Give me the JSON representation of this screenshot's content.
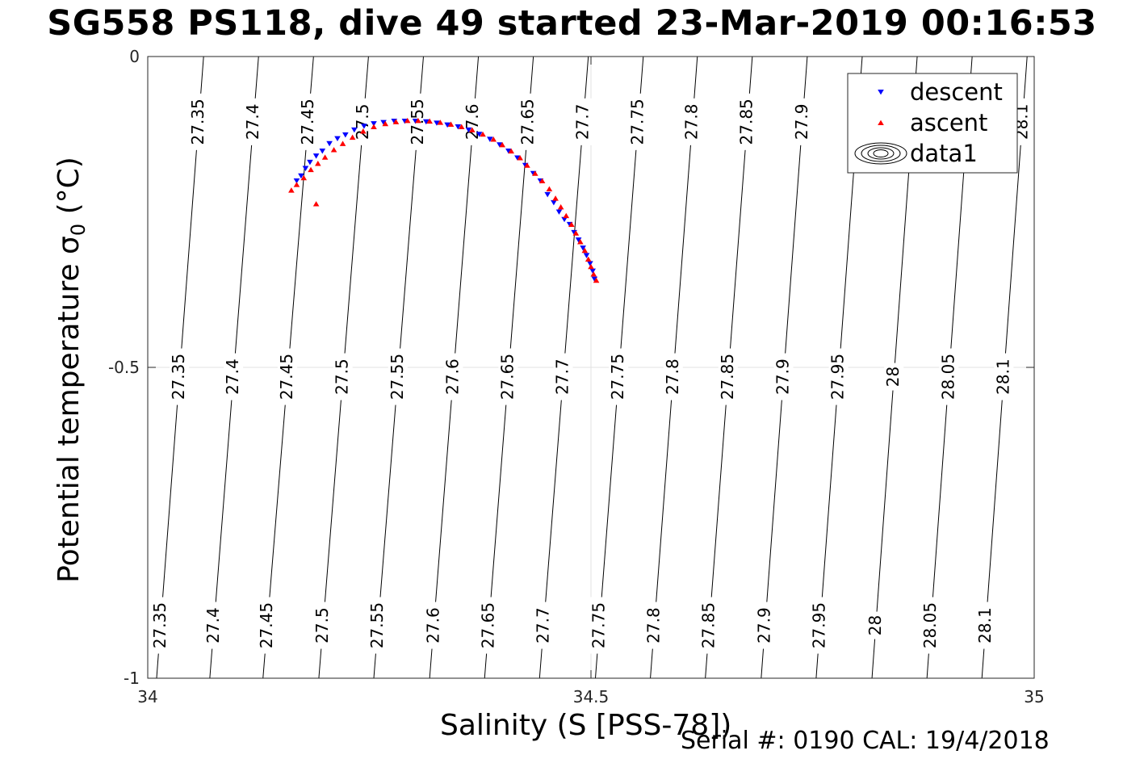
{
  "chart_data": {
    "type": "scatter",
    "title": "SG558 PS118, dive 49 started 23-Mar-2019 00:16:53",
    "xlabel": "Salinity (S [PSS-78])",
    "ylabel_text": "Potential temperature ",
    "ylabel_sigma": "σ",
    "ylabel_sub": "0",
    "ylabel_unit": " (°C)",
    "footer": "Serial #: 0190  CAL: 19/4/2018",
    "xlim": [
      34,
      35
    ],
    "ylim": [
      -1,
      0
    ],
    "x_ticks": [
      34,
      34.5,
      35
    ],
    "x_tick_labels": [
      "34",
      "34.5",
      "35"
    ],
    "y_ticks": [
      0,
      -0.5,
      -1
    ],
    "y_tick_labels": [
      "0",
      "-0.5",
      "-1"
    ],
    "grid": true,
    "legend_position": "top-right",
    "legend": [
      {
        "name": "descent",
        "marker": "triangle-down",
        "color": "#0000ff"
      },
      {
        "name": "ascent",
        "marker": "triangle-up",
        "color": "#ff0000"
      },
      {
        "name": "data1",
        "marker": "contour",
        "color": "#000000"
      }
    ],
    "contours": {
      "levels": [
        "27.35",
        "27.4",
        "27.45",
        "27.5",
        "27.55",
        "27.6",
        "27.65",
        "27.7",
        "27.75",
        "27.8",
        "27.85",
        "27.9",
        "27.95",
        "28",
        "28.05",
        "28.1"
      ],
      "s_at_bottom": [
        34.01,
        34.07,
        34.13,
        34.193,
        34.255,
        34.318,
        34.38,
        34.442,
        34.505,
        34.567,
        34.629,
        34.692,
        34.754,
        34.817,
        34.879,
        34.941
      ],
      "s_at_top": [
        34.063,
        34.125,
        34.187,
        34.249,
        34.311,
        34.373,
        34.435,
        34.497,
        34.559,
        34.62,
        34.682,
        34.744,
        34.806,
        34.868,
        34.93,
        34.992
      ],
      "label_rows": [
        {
          "y": -0.105,
          "levels": [
            "27.35",
            "27.4",
            "27.45",
            "27.5",
            "27.55",
            "27.6",
            "27.65",
            "27.7",
            "27.75",
            "27.8",
            "27.85",
            "27.9",
            "28.1"
          ]
        },
        {
          "y": -0.515,
          "levels": [
            "27.35",
            "27.4",
            "27.45",
            "27.5",
            "27.55",
            "27.6",
            "27.65",
            "27.7",
            "27.75",
            "27.8",
            "27.85",
            "27.9",
            "27.95",
            "28",
            "28.05",
            "28.1"
          ]
        },
        {
          "y": -0.915,
          "levels": [
            "27.35",
            "27.4",
            "27.45",
            "27.5",
            "27.55",
            "27.6",
            "27.65",
            "27.7",
            "27.75",
            "27.8",
            "27.85",
            "27.9",
            "27.95",
            "28",
            "28.05",
            "28.1"
          ]
        }
      ]
    },
    "series": [
      {
        "name": "descent",
        "marker": "triangle-down",
        "color": "#0000ff",
        "x": [
          34.168,
          34.173,
          34.178,
          34.183,
          34.19,
          34.197,
          34.205,
          34.214,
          34.223,
          34.233,
          34.244,
          34.255,
          34.266,
          34.278,
          34.29,
          34.302,
          34.314,
          34.326,
          34.338,
          34.35,
          34.362,
          34.374,
          34.386,
          34.397,
          34.407,
          34.417,
          34.426,
          34.435,
          34.443,
          34.451,
          34.458,
          34.464,
          34.47,
          34.476,
          34.481,
          34.486,
          34.491,
          34.495,
          34.499,
          34.502,
          34.504
        ],
        "y": [
          -0.2,
          -0.192,
          -0.18,
          -0.17,
          -0.16,
          -0.152,
          -0.14,
          -0.132,
          -0.126,
          -0.118,
          -0.112,
          -0.108,
          -0.106,
          -0.104,
          -0.104,
          -0.104,
          -0.105,
          -0.107,
          -0.11,
          -0.113,
          -0.118,
          -0.125,
          -0.133,
          -0.142,
          -0.152,
          -0.163,
          -0.175,
          -0.188,
          -0.2,
          -0.222,
          -0.235,
          -0.25,
          -0.262,
          -0.27,
          -0.283,
          -0.295,
          -0.308,
          -0.32,
          -0.333,
          -0.345,
          -0.358
        ]
      },
      {
        "name": "ascent",
        "marker": "triangle-up",
        "color": "#ff0000",
        "x": [
          34.162,
          34.168,
          34.176,
          34.184,
          34.192,
          34.2,
          34.21,
          34.22,
          34.231,
          34.243,
          34.255,
          34.268,
          34.28,
          34.293,
          34.305,
          34.318,
          34.33,
          34.342,
          34.354,
          34.366,
          34.378,
          34.39,
          34.4,
          34.41,
          34.42,
          34.428,
          34.437,
          34.445,
          34.453,
          34.46,
          34.466,
          34.472,
          34.478,
          34.483,
          34.488,
          34.493,
          34.497,
          34.5,
          34.503,
          34.506,
          34.19
        ],
        "y": [
          -0.215,
          -0.206,
          -0.195,
          -0.182,
          -0.172,
          -0.162,
          -0.15,
          -0.14,
          -0.13,
          -0.12,
          -0.113,
          -0.108,
          -0.105,
          -0.103,
          -0.103,
          -0.104,
          -0.106,
          -0.109,
          -0.113,
          -0.118,
          -0.125,
          -0.133,
          -0.142,
          -0.152,
          -0.163,
          -0.175,
          -0.188,
          -0.2,
          -0.213,
          -0.228,
          -0.242,
          -0.256,
          -0.27,
          -0.284,
          -0.298,
          -0.312,
          -0.326,
          -0.338,
          -0.35,
          -0.36,
          -0.237
        ]
      }
    ]
  }
}
